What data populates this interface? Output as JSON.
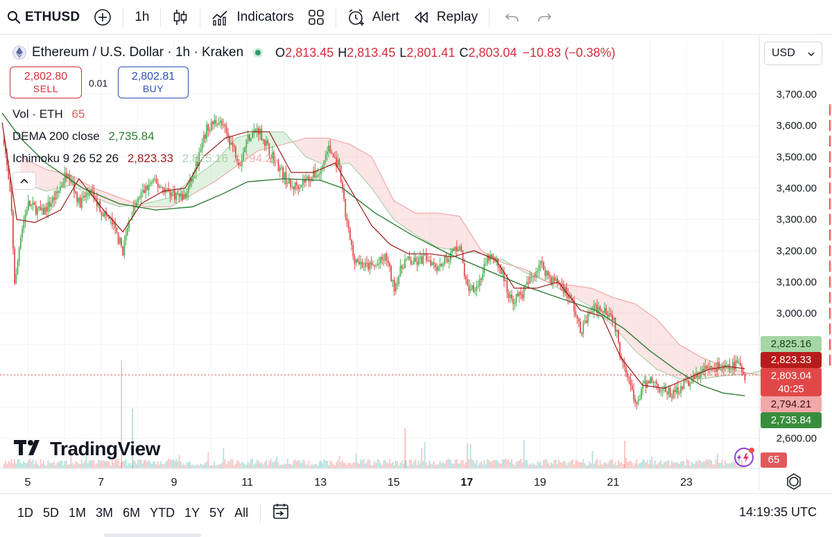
{
  "toolbar": {
    "symbol": "ETHUSD",
    "interval": "1h",
    "indicators_label": "Indicators",
    "alert_label": "Alert",
    "replay_label": "Replay"
  },
  "legend": {
    "title": "Ethereum / U.S. Dollar · 1h · Kraken",
    "open_key": "O",
    "open": "2,813.45",
    "high_key": "H",
    "high": "2,813.45",
    "low_key": "L",
    "low": "2,801.41",
    "close_key": "C",
    "close": "2,803.04",
    "change": "−10.83 (−0.38%)",
    "currency": "USD",
    "sell_price": "2,802.80",
    "sell_label": "SELL",
    "spread": "0.01",
    "buy_price": "2,802.81",
    "buy_label": "BUY",
    "vol_label": "Vol · ETH",
    "vol_value": "65",
    "dema_label": "DEMA 200 close",
    "dema_value": "2,735.84",
    "ichi_label": "Ichimoku 9 26 52 26",
    "ichi_v1": "2,823.33",
    "ichi_v2": "2,825.16",
    "ichi_v3": "2,794.21"
  },
  "price_tags": {
    "span_a": "2,825.16",
    "conversion": "2,823.33",
    "last": "2,803.04",
    "countdown": "40:25",
    "span_b": "2,794.21",
    "dema": "2,735.84",
    "volume": "65"
  },
  "colors": {
    "up": "#26a69a",
    "down": "#ef5350",
    "up_candle": "#4caf50",
    "down_candle": "#e04848",
    "dema": "#2e7d32",
    "conversion": "#9c1c1c",
    "kumo_green": "#a5d6a7",
    "kumo_red": "#f4b4b4"
  },
  "branding": {
    "logo": "TradingView"
  },
  "bottom": {
    "ranges": [
      "1D",
      "5D",
      "1M",
      "3M",
      "6M",
      "YTD",
      "1Y",
      "5Y",
      "All"
    ],
    "clock": "14:19:35 UTC"
  },
  "chart_data": {
    "type": "candlestick",
    "interval": "1h",
    "yaxis_ticks": [
      3700,
      3600,
      3500,
      3400,
      3300,
      3200,
      3100,
      3000,
      2900,
      2800,
      2700,
      2600
    ],
    "yaxis_labels": [
      "3,700.00",
      "3,600.00",
      "3,500.00",
      "3,400.00",
      "3,300.00",
      "3,200.00",
      "3,100.00",
      "3,000.00",
      "",
      "",
      "",
      "2,600.00"
    ],
    "ylim": [
      2560,
      3760
    ],
    "xaxis_labels": [
      "5",
      "7",
      "9",
      "11",
      "13",
      "15",
      "17",
      "19",
      "21",
      "23"
    ],
    "xaxis_days": [
      5,
      7,
      9,
      11,
      13,
      15,
      17,
      19,
      21,
      23
    ],
    "xlim_days": [
      4.3,
      25.8
    ],
    "last_day": 24.6,
    "close_path": [
      [
        4.3,
        3610
      ],
      [
        4.55,
        3340
      ],
      [
        4.65,
        3080
      ],
      [
        4.8,
        3250
      ],
      [
        5.0,
        3350
      ],
      [
        5.4,
        3320
      ],
      [
        5.8,
        3380
      ],
      [
        6.1,
        3460
      ],
      [
        6.4,
        3350
      ],
      [
        6.7,
        3390
      ],
      [
        7.0,
        3330
      ],
      [
        7.3,
        3290
      ],
      [
        7.6,
        3200
      ],
      [
        7.8,
        3310
      ],
      [
        8.1,
        3380
      ],
      [
        8.4,
        3420
      ],
      [
        8.7,
        3400
      ],
      [
        9.0,
        3380
      ],
      [
        9.3,
        3370
      ],
      [
        9.6,
        3470
      ],
      [
        9.9,
        3590
      ],
      [
        10.2,
        3620
      ],
      [
        10.5,
        3560
      ],
      [
        10.8,
        3480
      ],
      [
        11.0,
        3560
      ],
      [
        11.3,
        3590
      ],
      [
        11.6,
        3520
      ],
      [
        11.9,
        3460
      ],
      [
        12.2,
        3400
      ],
      [
        12.5,
        3420
      ],
      [
        12.8,
        3440
      ],
      [
        13.0,
        3450
      ],
      [
        13.2,
        3530
      ],
      [
        13.5,
        3470
      ],
      [
        13.7,
        3300
      ],
      [
        13.9,
        3180
      ],
      [
        14.2,
        3150
      ],
      [
        14.5,
        3150
      ],
      [
        14.8,
        3180
      ],
      [
        15.0,
        3080
      ],
      [
        15.3,
        3170
      ],
      [
        15.6,
        3160
      ],
      [
        15.9,
        3180
      ],
      [
        16.2,
        3150
      ],
      [
        16.5,
        3180
      ],
      [
        16.8,
        3220
      ],
      [
        17.0,
        3080
      ],
      [
        17.3,
        3090
      ],
      [
        17.6,
        3180
      ],
      [
        17.9,
        3150
      ],
      [
        18.2,
        3040
      ],
      [
        18.5,
        3060
      ],
      [
        18.8,
        3120
      ],
      [
        19.0,
        3160
      ],
      [
        19.3,
        3110
      ],
      [
        19.6,
        3090
      ],
      [
        19.9,
        3030
      ],
      [
        20.1,
        2940
      ],
      [
        20.4,
        3010
      ],
      [
        20.7,
        3020
      ],
      [
        21.0,
        2990
      ],
      [
        21.2,
        2870
      ],
      [
        21.4,
        2810
      ],
      [
        21.6,
        2700
      ],
      [
        21.8,
        2760
      ],
      [
        22.0,
        2790
      ],
      [
        22.3,
        2760
      ],
      [
        22.6,
        2740
      ],
      [
        22.9,
        2770
      ],
      [
        23.2,
        2790
      ],
      [
        23.5,
        2820
      ],
      [
        23.8,
        2830
      ],
      [
        24.1,
        2820
      ],
      [
        24.4,
        2840
      ],
      [
        24.6,
        2803
      ]
    ],
    "dema_200": [
      [
        4.3,
        3640
      ],
      [
        4.8,
        3560
      ],
      [
        5.5,
        3480
      ],
      [
        6.5,
        3400
      ],
      [
        7.5,
        3350
      ],
      [
        8.5,
        3330
      ],
      [
        9.5,
        3340
      ],
      [
        10.3,
        3380
      ],
      [
        11.0,
        3420
      ],
      [
        12.0,
        3430
      ],
      [
        13.0,
        3425
      ],
      [
        13.6,
        3400
      ],
      [
        14.5,
        3320
      ],
      [
        15.5,
        3250
      ],
      [
        16.5,
        3190
      ],
      [
        17.5,
        3140
      ],
      [
        18.5,
        3090
      ],
      [
        19.5,
        3050
      ],
      [
        20.5,
        3010
      ],
      [
        21.3,
        2950
      ],
      [
        22.0,
        2880
      ],
      [
        22.7,
        2820
      ],
      [
        23.4,
        2770
      ],
      [
        24.0,
        2745
      ],
      [
        24.6,
        2736
      ]
    ],
    "conversion_line": [
      [
        4.3,
        3610
      ],
      [
        4.7,
        3300
      ],
      [
        5.2,
        3290
      ],
      [
        5.9,
        3330
      ],
      [
        6.4,
        3430
      ],
      [
        7.0,
        3340
      ],
      [
        7.6,
        3260
      ],
      [
        8.1,
        3350
      ],
      [
        8.7,
        3390
      ],
      [
        9.3,
        3400
      ],
      [
        9.8,
        3500
      ],
      [
        10.4,
        3560
      ],
      [
        11.0,
        3580
      ],
      [
        11.6,
        3580
      ],
      [
        12.2,
        3450
      ],
      [
        12.8,
        3450
      ],
      [
        13.4,
        3480
      ],
      [
        13.9,
        3380
      ],
      [
        14.4,
        3280
      ],
      [
        14.9,
        3220
      ],
      [
        15.4,
        3190
      ],
      [
        16.0,
        3190
      ],
      [
        16.6,
        3180
      ],
      [
        17.2,
        3200
      ],
      [
        17.8,
        3170
      ],
      [
        18.3,
        3080
      ],
      [
        18.9,
        3080
      ],
      [
        19.5,
        3100
      ],
      [
        20.1,
        3010
      ],
      [
        20.7,
        2990
      ],
      [
        21.2,
        2860
      ],
      [
        21.8,
        2770
      ],
      [
        22.4,
        2760
      ],
      [
        23.0,
        2790
      ],
      [
        23.6,
        2820
      ],
      [
        24.1,
        2830
      ],
      [
        24.6,
        2823
      ]
    ],
    "span_a": [
      [
        4.8,
        3420
      ],
      [
        5.5,
        3390
      ],
      [
        6.2,
        3410
      ],
      [
        6.8,
        3370
      ],
      [
        7.5,
        3340
      ],
      [
        8.2,
        3350
      ],
      [
        8.9,
        3370
      ],
      [
        9.5,
        3430
      ],
      [
        10.1,
        3480
      ],
      [
        10.7,
        3560
      ],
      [
        11.3,
        3580
      ],
      [
        12.0,
        3580
      ],
      [
        12.6,
        3500
      ],
      [
        13.2,
        3470
      ],
      [
        13.8,
        3480
      ],
      [
        14.4,
        3400
      ],
      [
        15.0,
        3300
      ],
      [
        15.6,
        3250
      ],
      [
        16.2,
        3210
      ],
      [
        16.8,
        3200
      ],
      [
        17.4,
        3190
      ],
      [
        18.0,
        3170
      ],
      [
        18.6,
        3130
      ],
      [
        19.2,
        3100
      ],
      [
        19.8,
        3060
      ],
      [
        20.4,
        3020
      ],
      [
        21.0,
        2960
      ],
      [
        21.6,
        2880
      ],
      [
        22.2,
        2820
      ],
      [
        22.8,
        2790
      ],
      [
        23.4,
        2790
      ],
      [
        24.0,
        2800
      ],
      [
        24.6,
        2805
      ],
      [
        25.4,
        2825
      ]
    ],
    "span_b": [
      [
        4.8,
        3500
      ],
      [
        5.5,
        3460
      ],
      [
        6.2,
        3440
      ],
      [
        6.8,
        3400
      ],
      [
        7.5,
        3370
      ],
      [
        8.2,
        3340
      ],
      [
        8.9,
        3340
      ],
      [
        9.5,
        3380
      ],
      [
        10.1,
        3420
      ],
      [
        10.7,
        3470
      ],
      [
        11.3,
        3520
      ],
      [
        12.0,
        3540
      ],
      [
        12.6,
        3560
      ],
      [
        13.2,
        3560
      ],
      [
        13.8,
        3540
      ],
      [
        14.4,
        3500
      ],
      [
        15.0,
        3360
      ],
      [
        15.6,
        3320
      ],
      [
        16.2,
        3320
      ],
      [
        16.8,
        3310
      ],
      [
        17.4,
        3200
      ],
      [
        18.0,
        3160
      ],
      [
        18.6,
        3140
      ],
      [
        19.2,
        3100
      ],
      [
        19.8,
        3090
      ],
      [
        20.4,
        3080
      ],
      [
        21.0,
        3050
      ],
      [
        21.6,
        3030
      ],
      [
        22.2,
        2980
      ],
      [
        22.8,
        2900
      ],
      [
        23.4,
        2860
      ],
      [
        24.0,
        2830
      ],
      [
        24.6,
        2810
      ],
      [
        25.4,
        2794
      ]
    ],
    "last_price": 2803.04
  }
}
